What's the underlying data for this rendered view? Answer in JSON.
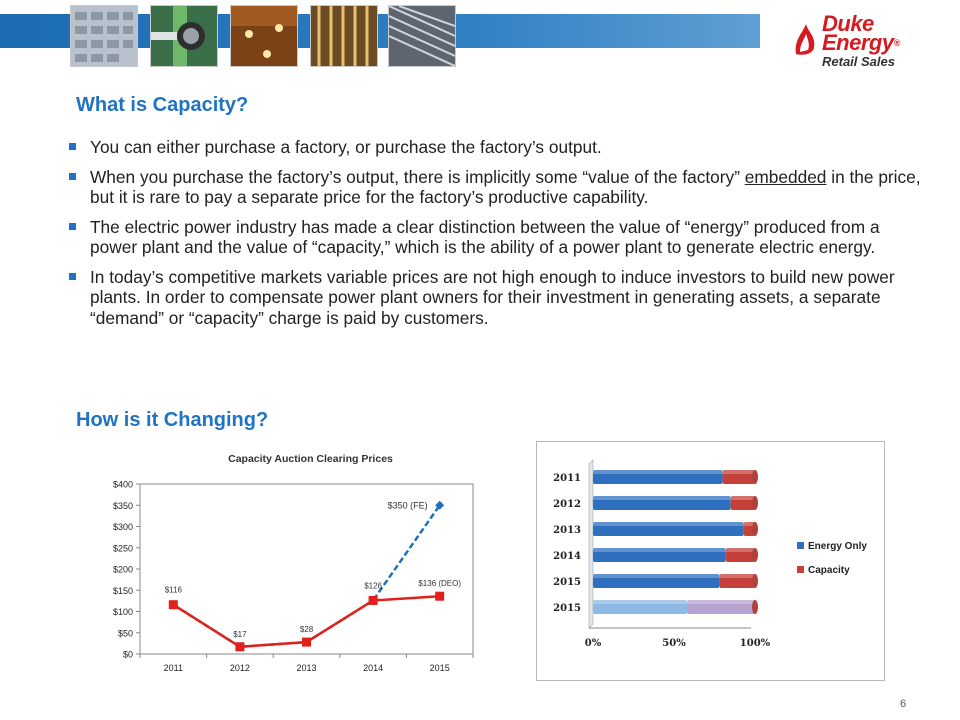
{
  "brand": {
    "name_line1": "Duke",
    "name_line2": "Energy",
    "registered_mark": "®",
    "tagline": "Retail Sales",
    "color": "#d71920"
  },
  "section1": {
    "heading": "What is Capacity?",
    "bullets": [
      {
        "before": "You can either purchase a factory, or purchase the factory’s output.",
        "emphasis": "",
        "after": ""
      },
      {
        "before": "When you purchase the factory’s output, there is implicitly some “value of the factory” ",
        "emphasis": "embedded",
        "after": " in the price, but it is rare to pay a separate price for the factory’s productive capability."
      },
      {
        "before": "The electric power industry has made a clear distinction between the value of “energy” produced from a power plant and the value of “capacity,” which is the ability of a power plant to generate electric energy.",
        "emphasis": "",
        "after": ""
      },
      {
        "before": "In today’s competitive markets variable prices are not high enough to induce investors to build new power plants. In order to compensate power plant owners for their investment in generating assets, a separate “demand” or “capacity” charge is paid by customers.",
        "emphasis": "",
        "after": ""
      }
    ]
  },
  "section2": {
    "heading": "How is it Changing?"
  },
  "accent_color": "#1f73c2",
  "chart_data": [
    {
      "type": "line",
      "title": "Capacity Auction Clearing Prices",
      "x": [
        "2011",
        "2012",
        "2013",
        "2014",
        "2015"
      ],
      "ylim": [
        0,
        400
      ],
      "y_ticks": [
        "$0",
        "$50",
        "$100",
        "$150",
        "$200",
        "$250",
        "$300",
        "$350",
        "$400"
      ],
      "grid": false,
      "series": [
        {
          "name": "",
          "style": "solid",
          "color": "#e0201b",
          "marker": "square",
          "values": [
            116,
            17,
            28,
            126,
            136
          ],
          "labels": [
            "$116",
            "$17",
            "$28",
            "$126",
            "$136 (DEO)"
          ]
        },
        {
          "name": "",
          "style": "dashed",
          "color": "#1f6fbf",
          "marker": "diamond",
          "values": [
            116,
            17,
            28,
            126,
            350
          ],
          "labels": [
            "",
            "",
            "",
            "",
            "$350 (FE)"
          ]
        }
      ]
    },
    {
      "type": "bar",
      "orientation": "horizontal",
      "stacked": "percent",
      "categories": [
        "2011",
        "2012",
        "2013",
        "2014",
        "2015",
        "2015"
      ],
      "x_ticks": [
        "0%",
        "50%",
        "100%"
      ],
      "xlim": [
        0,
        100
      ],
      "legend": "right",
      "series": [
        {
          "name": "Energy Only",
          "color": "#2f6fbf",
          "values": [
            80,
            85,
            93,
            82,
            78,
            58
          ]
        },
        {
          "name": "Capacity",
          "color": "#c6403a",
          "values": [
            20,
            15,
            7,
            18,
            22,
            42
          ]
        }
      ],
      "last_row_colors": [
        "#8db9e4",
        "#b7a3cf"
      ]
    }
  ],
  "page_number": "6"
}
